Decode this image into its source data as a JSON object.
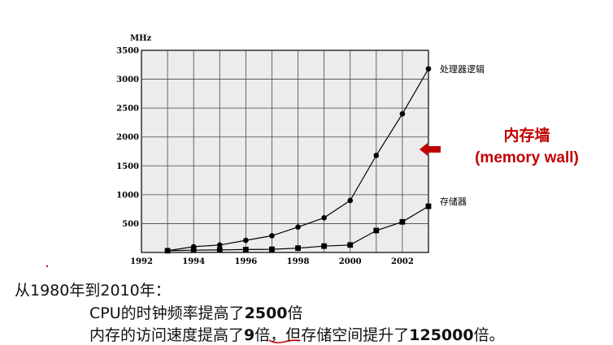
{
  "chart_data": {
    "type": "line",
    "ylabel": "MHz",
    "xlim": [
      1992,
      2003
    ],
    "ylim": [
      0,
      3500
    ],
    "x_ticks": [
      1992,
      1994,
      1996,
      1998,
      2000,
      2002
    ],
    "y_ticks": [
      500,
      1000,
      1500,
      2000,
      2500,
      3000,
      3500
    ],
    "grid": true,
    "series": [
      {
        "name": "处理器逻辑",
        "marker": "circle",
        "x": [
          1993,
          1994,
          1995,
          1996,
          1997,
          1998,
          1999,
          2000,
          2001,
          2002,
          2003
        ],
        "y": [
          30,
          100,
          130,
          210,
          290,
          440,
          600,
          900,
          1680,
          2400,
          3180
        ]
      },
      {
        "name": "存储器",
        "marker": "square",
        "x": [
          1993,
          1994,
          1995,
          1996,
          1997,
          1998,
          1999,
          2000,
          2001,
          2002,
          2003
        ],
        "y": [
          30,
          40,
          45,
          50,
          55,
          75,
          110,
          130,
          380,
          530,
          800
        ]
      }
    ]
  },
  "annotation": {
    "title": "内存墙",
    "subtitle": "(memory wall)",
    "color": "#c00000"
  },
  "notes": {
    "line1": "从1980年到2010年：",
    "line2_prefix": "CPU的时钟频率提高了",
    "line2_value": "2500",
    "line2_suffix": "倍",
    "line3_prefix": "内存的访问速度提高了",
    "line3_value": "9",
    "line3_middle": "倍，但存储空间提升了",
    "line3_value2": "125000",
    "line3_suffix": "倍。"
  }
}
